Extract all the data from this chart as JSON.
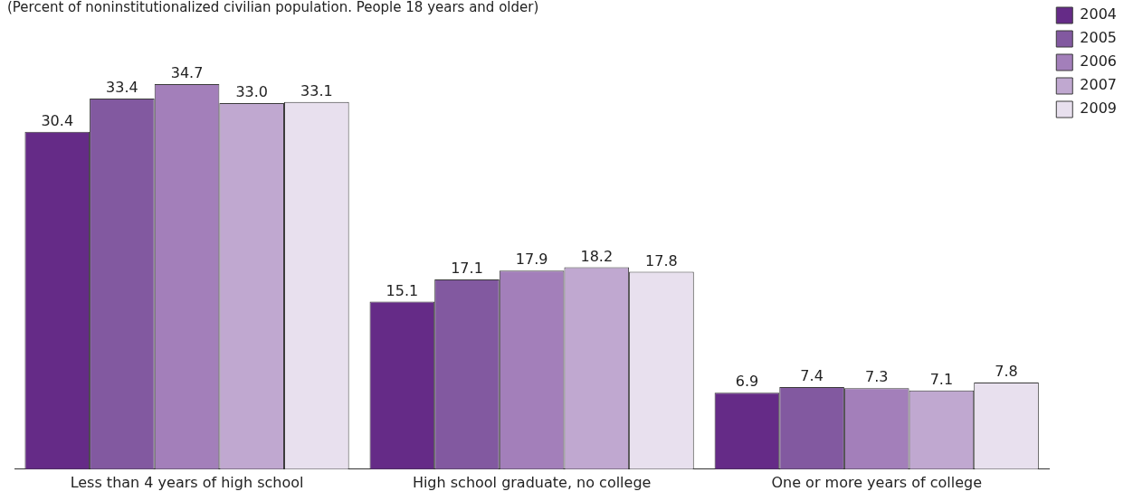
{
  "chart_data": {
    "type": "bar",
    "subtitle": "(Percent of noninstitutionalized civilian population. People 18 years and older)",
    "categories": [
      "Less than 4 years of high school",
      "High school graduate, no college",
      "One or more years of college"
    ],
    "series": [
      {
        "name": "2004",
        "color": "#652b87",
        "values": [
          30.4,
          15.1,
          6.9
        ],
        "value_labels": [
          "30.4",
          "15.1",
          "6.9"
        ]
      },
      {
        "name": "2005",
        "color": "#8259a0",
        "values": [
          33.4,
          17.1,
          7.4
        ],
        "value_labels": [
          "33.4",
          "17.1",
          "7.4"
        ]
      },
      {
        "name": "2006",
        "color": "#a37fba",
        "values": [
          34.7,
          17.9,
          7.3
        ],
        "value_labels": [
          "34.7",
          "17.9",
          "7.3"
        ]
      },
      {
        "name": "2007",
        "color": "#c0a8d0",
        "values": [
          33.0,
          18.2,
          7.1
        ],
        "value_labels": [
          "33.0",
          "18.2",
          "7.1"
        ]
      },
      {
        "name": "2009",
        "color": "#e8e0ee",
        "values": [
          33.1,
          17.8,
          7.8
        ],
        "value_labels": [
          "33.1",
          "17.8",
          "7.8"
        ]
      }
    ],
    "relative": false,
    "grid": false,
    "legend": "top right"
  }
}
